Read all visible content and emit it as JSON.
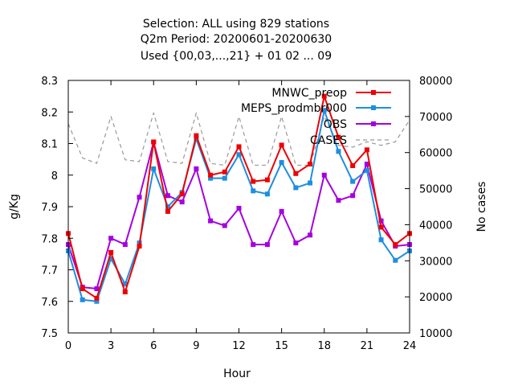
{
  "chart_data": {
    "type": "line",
    "title_lines": [
      "Selection: ALL using   829 stations",
      "Q2m   Period: 20200601-20200630",
      "Used {00,03,...,21} + 01 02 ... 09"
    ],
    "xlabel": "Hour",
    "ylabel": "g/Kg",
    "y2label": "No cases",
    "xlim": [
      0,
      24
    ],
    "ylim": [
      7.5,
      8.3
    ],
    "y2lim": [
      10000,
      80000
    ],
    "xticks": [
      "0",
      "3",
      "6",
      "9",
      "12",
      "15",
      "18",
      "21",
      "24"
    ],
    "yticks": [
      "7.5",
      "7.6",
      "7.7",
      "7.8",
      "7.9",
      "8",
      "8.1",
      "8.2",
      "8.3"
    ],
    "y2ticks": [
      "10000",
      "20000",
      "30000",
      "40000",
      "50000",
      "60000",
      "70000",
      "80000"
    ],
    "grid": false,
    "legend_position": "top-right",
    "x": [
      0,
      1,
      2,
      3,
      4,
      5,
      6,
      7,
      8,
      9,
      10,
      11,
      12,
      13,
      14,
      15,
      16,
      17,
      18,
      19,
      20,
      21,
      22,
      23,
      24
    ],
    "series": [
      {
        "name": "MNWC_preop",
        "color": "#ee0000",
        "axis": "y",
        "marker": "square",
        "values": [
          7.815,
          7.64,
          7.61,
          7.755,
          7.63,
          7.775,
          8.105,
          7.885,
          7.94,
          8.125,
          8.0,
          8.01,
          8.09,
          7.98,
          7.985,
          8.095,
          8.005,
          8.035,
          8.25,
          8.12,
          8.03,
          8.08,
          7.835,
          7.78,
          7.815
        ]
      },
      {
        "name": "MEPS_prodmbr000",
        "color": "#1e8ee0",
        "axis": "y",
        "marker": "square",
        "values": [
          7.76,
          7.605,
          7.6,
          7.735,
          7.655,
          7.785,
          8.02,
          7.9,
          7.945,
          8.115,
          7.99,
          7.99,
          8.065,
          7.95,
          7.94,
          8.04,
          7.96,
          7.975,
          8.205,
          8.075,
          7.98,
          8.015,
          7.795,
          7.73,
          7.76
        ]
      },
      {
        "name": "OBS",
        "color": "#a400e0",
        "axis": "y",
        "marker": "square",
        "values": [
          7.78,
          7.645,
          7.64,
          7.8,
          7.78,
          7.93,
          8.105,
          7.935,
          7.915,
          8.02,
          7.855,
          7.84,
          7.895,
          7.78,
          7.78,
          7.885,
          7.785,
          7.81,
          8.0,
          7.92,
          7.935,
          8.035,
          7.855,
          7.775,
          7.78
        ]
      },
      {
        "name": "CASES",
        "color": "#999999",
        "axis": "y2",
        "marker": "none",
        "dashed": true,
        "values": [
          68000,
          58500,
          57000,
          70000,
          58000,
          57500,
          71000,
          57500,
          57000,
          71000,
          57000,
          56500,
          70000,
          56500,
          56500,
          70000,
          56500,
          56500,
          70000,
          62000,
          61500,
          63000,
          62000,
          63000,
          69000
        ]
      }
    ]
  }
}
